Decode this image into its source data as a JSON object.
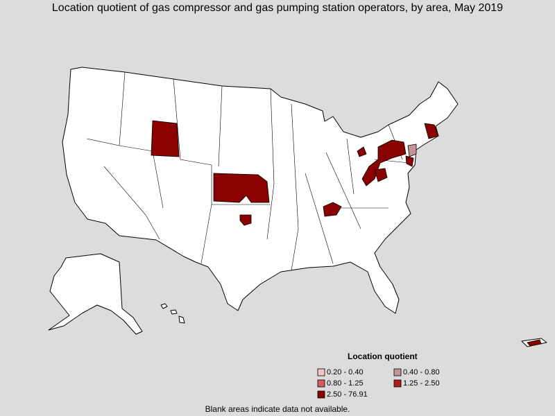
{
  "title": "Location quotient of gas compressor and gas pumping station operators, by area, May 2019",
  "legend": {
    "title": "Location quotient",
    "items": [
      {
        "label": "0.20 - 0.40",
        "color": "#f2c4c4"
      },
      {
        "label": "0.40 - 0.80",
        "color": "#c49494"
      },
      {
        "label": "0.80 - 1.25",
        "color": "#d75c5c"
      },
      {
        "label": "1.25 - 2.50",
        "color": "#b01c1c"
      },
      {
        "label": "2.50 - 76.91",
        "color": "#8b0000"
      }
    ]
  },
  "note": "Blank areas indicate data not available."
}
